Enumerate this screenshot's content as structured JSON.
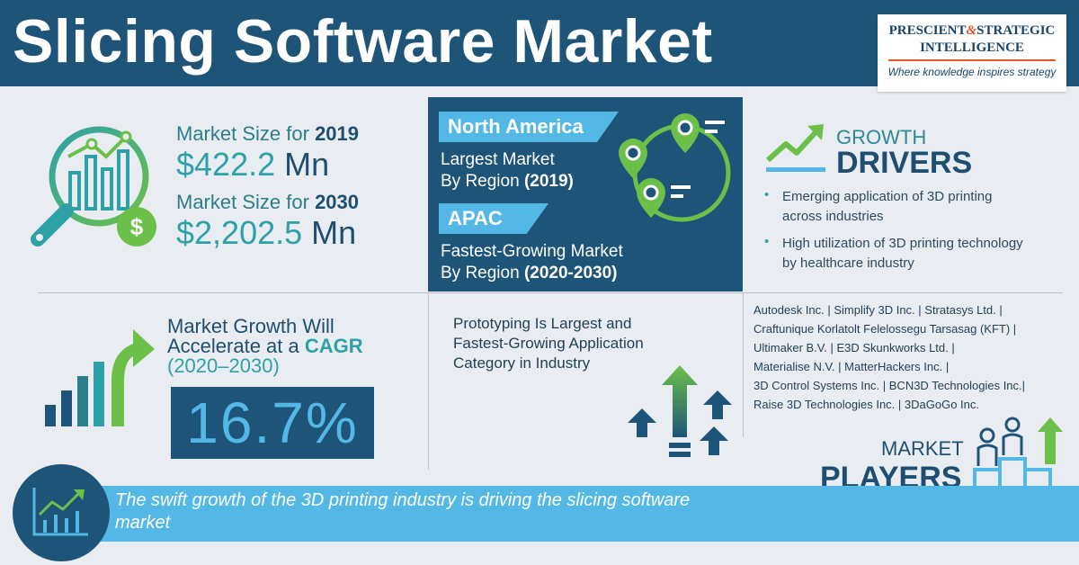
{
  "header": {
    "title": "Slicing Software Market"
  },
  "logo": {
    "line1_a": "PRESCIENT",
    "line1_amp": "&",
    "line1_b": "STRATEGIC",
    "line2": "INTELLIGENCE",
    "tagline": "Where knowledge inspires strategy"
  },
  "market_size": {
    "label_2019_prefix": "Market Size for",
    "label_2019_year": "2019",
    "value_2019_amount": "$422.2",
    "value_2019_unit": "Mn",
    "label_2030_prefix": "Market Size for",
    "label_2030_year": "2030",
    "value_2030_amount": "$2,202.5",
    "value_2030_unit": "Mn"
  },
  "regions": {
    "largest_tag": "North America",
    "largest_line1": "Largest Market",
    "largest_line2_prefix": "By Region",
    "largest_line2_year": "(2019)",
    "fastest_tag": "APAC",
    "fastest_line1": "Fastest-Growing Market",
    "fastest_line2_prefix": "By Region",
    "fastest_line2_year": "(2020-2030)"
  },
  "drivers": {
    "title_1": "GROWTH",
    "title_2": "DRIVERS",
    "items": [
      {
        "line1": "Emerging application of 3D printing",
        "line2": "across industries"
      },
      {
        "line1": "High utilization of 3D printing technology",
        "line2": "by healthcare industry"
      }
    ]
  },
  "cagr": {
    "line1": "Market Growth Will",
    "line2_prefix": "Accelerate at a",
    "line2_cagr": "CAGR",
    "line3": "(2020–2030)",
    "value": "16.7%"
  },
  "application": {
    "text": "Prototyping Is Largest and Fastest-Growing Application Category in Industry"
  },
  "players": {
    "lines": [
      "Autodesk Inc. | Simplify 3D Inc. | Stratasys Ltd. |",
      "Craftunique Korlatolt Felelossegu Tarsasag (KFT) |",
      "Ultimaker B.V. | E3D Skunkworks Ltd. |",
      "Materialise N.V. | MatterHackers Inc. |",
      "3D Control Systems Inc. | BCN3D Technologies Inc.|",
      "Raise 3D Technologies Inc. | 3DaGoGo Inc."
    ],
    "title_1": "MARKET",
    "title_2": "PLAYERS"
  },
  "banner": {
    "text": "The swift growth of the 3D printing industry is driving the slicing software market"
  },
  "colors": {
    "navy": "#1e5478",
    "sky": "#53b8e6",
    "teal": "#2ca2a8",
    "green": "#6cc04a",
    "background": "#e9edf1"
  }
}
